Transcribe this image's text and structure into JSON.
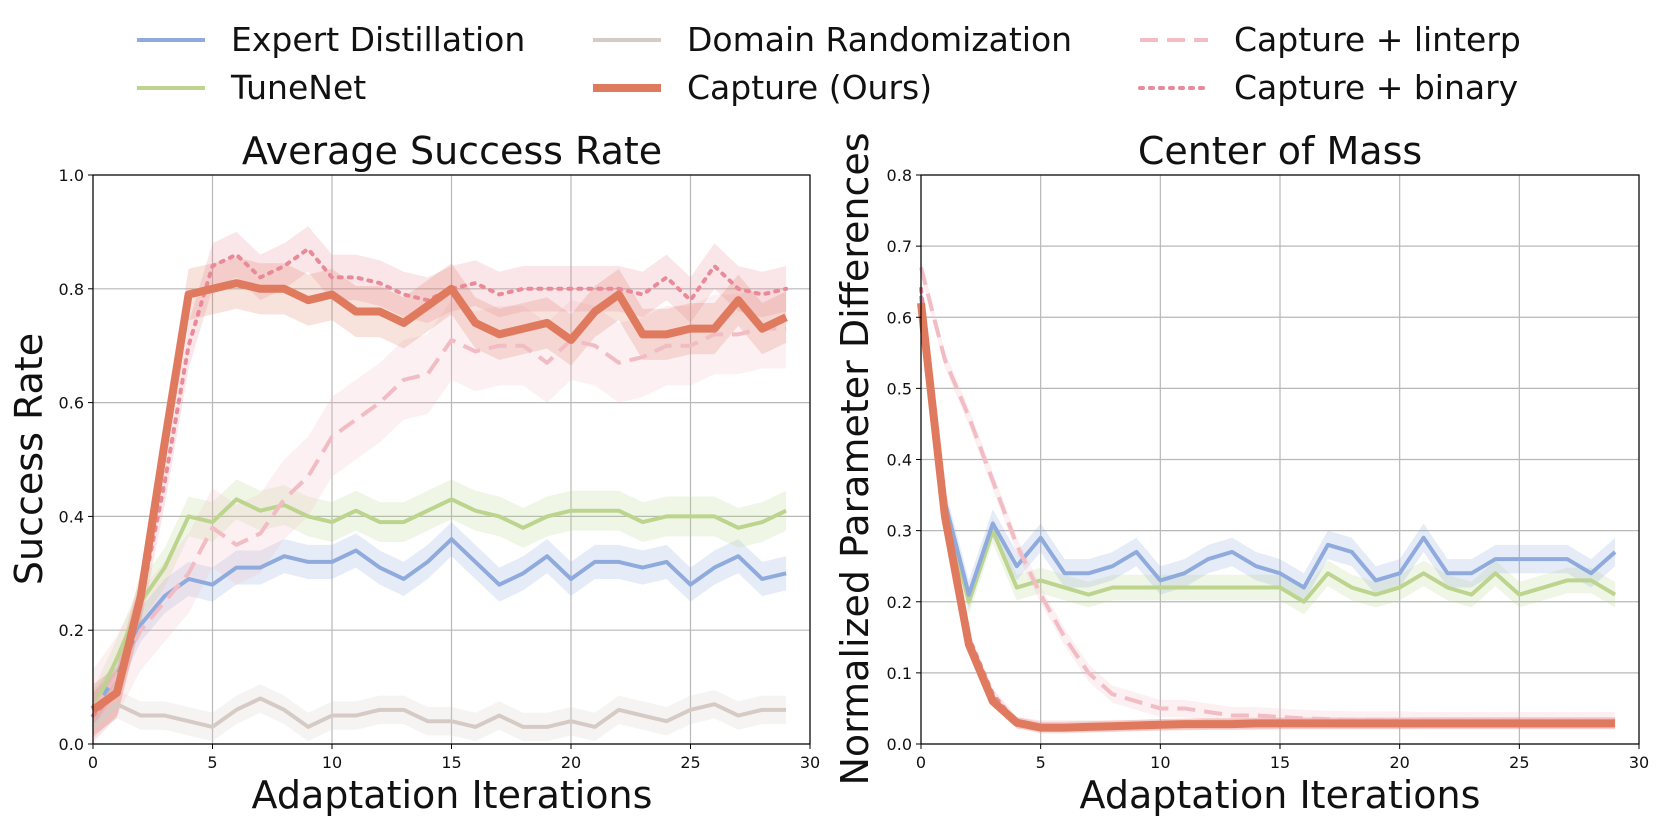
{
  "legend": [
    {
      "key": "expert",
      "label": "Expert Distillation",
      "color": "#8faadc",
      "dash": "solid",
      "width": 4
    },
    {
      "key": "domain",
      "label": "Domain Randomization",
      "color": "#d6cbc4",
      "dash": "solid",
      "width": 4
    },
    {
      "key": "linterp",
      "label": "Capture + linterp",
      "color": "#f2bcc4",
      "dash": "dashed",
      "width": 4
    },
    {
      "key": "tunenet",
      "label": "TuneNet",
      "color": "#bcd48e",
      "dash": "solid",
      "width": 4
    },
    {
      "key": "capture",
      "label": "Capture (Ours)",
      "color": "#e07a5f",
      "dash": "solid",
      "width": 8
    },
    {
      "key": "binary",
      "label": "Capture + binary",
      "color": "#e98a98",
      "dash": "dotted",
      "width": 4
    }
  ],
  "chart_data": [
    {
      "type": "line",
      "title": "Average Success Rate",
      "xlabel": "Adaptation Iterations",
      "ylabel": "Success Rate",
      "xlim": [
        0,
        30
      ],
      "ylim": [
        0,
        1.0
      ],
      "xticks": [
        "0",
        "5",
        "10",
        "15",
        "20",
        "25",
        "30"
      ],
      "yticks": [
        "0.0",
        "0.2",
        "0.4",
        "0.6",
        "0.8",
        "1.0"
      ],
      "grid": true,
      "x": [
        0,
        1,
        2,
        3,
        4,
        5,
        6,
        7,
        8,
        9,
        10,
        11,
        12,
        13,
        14,
        15,
        16,
        17,
        18,
        19,
        20,
        21,
        22,
        23,
        24,
        25,
        26,
        27,
        28,
        29
      ],
      "series": [
        {
          "name": "Domain Randomization",
          "key": "domain",
          "band": 0.025,
          "values": [
            0.03,
            0.07,
            0.05,
            0.05,
            0.04,
            0.03,
            0.06,
            0.08,
            0.06,
            0.03,
            0.05,
            0.05,
            0.06,
            0.06,
            0.04,
            0.04,
            0.03,
            0.05,
            0.03,
            0.03,
            0.04,
            0.03,
            0.06,
            0.05,
            0.04,
            0.06,
            0.07,
            0.05,
            0.06,
            0.06
          ]
        },
        {
          "name": "Expert Distillation",
          "key": "expert",
          "band": 0.03,
          "values": [
            0.06,
            0.12,
            0.21,
            0.26,
            0.29,
            0.28,
            0.31,
            0.31,
            0.33,
            0.32,
            0.32,
            0.34,
            0.31,
            0.29,
            0.32,
            0.36,
            0.32,
            0.28,
            0.3,
            0.33,
            0.29,
            0.32,
            0.32,
            0.31,
            0.32,
            0.28,
            0.31,
            0.33,
            0.29,
            0.3
          ]
        },
        {
          "name": "TuneNet",
          "key": "tunenet",
          "band": 0.035,
          "values": [
            0.06,
            0.15,
            0.25,
            0.31,
            0.4,
            0.39,
            0.43,
            0.41,
            0.42,
            0.4,
            0.39,
            0.41,
            0.39,
            0.39,
            0.41,
            0.43,
            0.41,
            0.4,
            0.38,
            0.4,
            0.41,
            0.41,
            0.41,
            0.39,
            0.4,
            0.4,
            0.4,
            0.38,
            0.39,
            0.41
          ]
        },
        {
          "name": "Capture + linterp",
          "key": "linterp",
          "band": 0.07,
          "values": [
            0.06,
            0.12,
            0.2,
            0.25,
            0.3,
            0.38,
            0.35,
            0.37,
            0.43,
            0.47,
            0.54,
            0.57,
            0.6,
            0.64,
            0.65,
            0.71,
            0.69,
            0.7,
            0.7,
            0.67,
            0.71,
            0.7,
            0.67,
            0.68,
            0.7,
            0.7,
            0.72,
            0.72,
            0.73,
            0.73
          ]
        },
        {
          "name": "Capture + binary",
          "key": "binary",
          "band": 0.04,
          "values": [
            0.05,
            0.09,
            0.25,
            0.46,
            0.7,
            0.84,
            0.86,
            0.82,
            0.84,
            0.87,
            0.82,
            0.82,
            0.81,
            0.79,
            0.78,
            0.8,
            0.81,
            0.79,
            0.8,
            0.8,
            0.8,
            0.8,
            0.8,
            0.79,
            0.82,
            0.78,
            0.84,
            0.8,
            0.79,
            0.8
          ]
        },
        {
          "name": "Capture (Ours)",
          "key": "capture",
          "band": 0.045,
          "values": [
            0.06,
            0.09,
            0.26,
            0.53,
            0.79,
            0.8,
            0.81,
            0.8,
            0.8,
            0.78,
            0.79,
            0.76,
            0.76,
            0.74,
            0.77,
            0.8,
            0.74,
            0.72,
            0.73,
            0.74,
            0.71,
            0.76,
            0.79,
            0.72,
            0.72,
            0.73,
            0.73,
            0.78,
            0.73,
            0.75
          ]
        }
      ]
    },
    {
      "type": "line",
      "title": "Center of Mass",
      "xlabel": "Adaptation Iterations",
      "ylabel": "Normalized Parameter Differences",
      "xlim": [
        0,
        30
      ],
      "ylim": [
        0,
        0.8
      ],
      "xticks": [
        "0",
        "5",
        "10",
        "15",
        "20",
        "25",
        "30"
      ],
      "yticks": [
        "0.0",
        "0.1",
        "0.2",
        "0.3",
        "0.4",
        "0.5",
        "0.6",
        "0.7",
        "0.8"
      ],
      "grid": true,
      "x": [
        0,
        1,
        2,
        3,
        4,
        5,
        6,
        7,
        8,
        9,
        10,
        11,
        12,
        13,
        14,
        15,
        16,
        17,
        18,
        19,
        20,
        21,
        22,
        23,
        24,
        25,
        26,
        27,
        28,
        29
      ],
      "series": [
        {
          "name": "TuneNet",
          "key": "tunenet",
          "band": 0.018,
          "values": [
            0.62,
            0.33,
            0.2,
            0.3,
            0.22,
            0.23,
            0.22,
            0.21,
            0.22,
            0.22,
            0.22,
            0.22,
            0.22,
            0.22,
            0.22,
            0.22,
            0.2,
            0.24,
            0.22,
            0.21,
            0.22,
            0.24,
            0.22,
            0.21,
            0.24,
            0.21,
            0.22,
            0.23,
            0.23,
            0.21
          ]
        },
        {
          "name": "Expert Distillation",
          "key": "expert",
          "band": 0.02,
          "values": [
            0.63,
            0.34,
            0.21,
            0.31,
            0.25,
            0.29,
            0.24,
            0.24,
            0.25,
            0.27,
            0.23,
            0.24,
            0.26,
            0.27,
            0.25,
            0.24,
            0.22,
            0.28,
            0.27,
            0.23,
            0.24,
            0.29,
            0.24,
            0.24,
            0.26,
            0.26,
            0.26,
            0.26,
            0.24,
            0.27
          ]
        },
        {
          "name": "Capture + linterp",
          "key": "linterp",
          "band": 0.012,
          "values": [
            0.67,
            0.54,
            0.46,
            0.37,
            0.28,
            0.21,
            0.15,
            0.1,
            0.07,
            0.06,
            0.05,
            0.05,
            0.045,
            0.04,
            0.04,
            0.038,
            0.036,
            0.035,
            0.034,
            0.034,
            0.034,
            0.033,
            0.033,
            0.033,
            0.033,
            0.033,
            0.033,
            0.033,
            0.033,
            0.033
          ]
        },
        {
          "name": "Capture + binary",
          "key": "binary",
          "band": 0.008,
          "values": [
            0.64,
            0.33,
            0.15,
            0.07,
            0.03,
            0.025,
            0.025,
            0.025,
            0.025,
            0.026,
            0.027,
            0.027,
            0.028,
            0.028,
            0.028,
            0.029,
            0.029,
            0.029,
            0.029,
            0.029,
            0.029,
            0.03,
            0.03,
            0.03,
            0.03,
            0.03,
            0.03,
            0.03,
            0.03,
            0.03
          ]
        },
        {
          "name": "Capture (Ours)",
          "key": "capture",
          "band": 0.008,
          "values": [
            0.62,
            0.32,
            0.14,
            0.06,
            0.03,
            0.023,
            0.023,
            0.024,
            0.025,
            0.026,
            0.027,
            0.028,
            0.028,
            0.028,
            0.029,
            0.029,
            0.029,
            0.029,
            0.029,
            0.029,
            0.029,
            0.029,
            0.029,
            0.029,
            0.029,
            0.029,
            0.029,
            0.029,
            0.029,
            0.029
          ]
        }
      ]
    }
  ]
}
